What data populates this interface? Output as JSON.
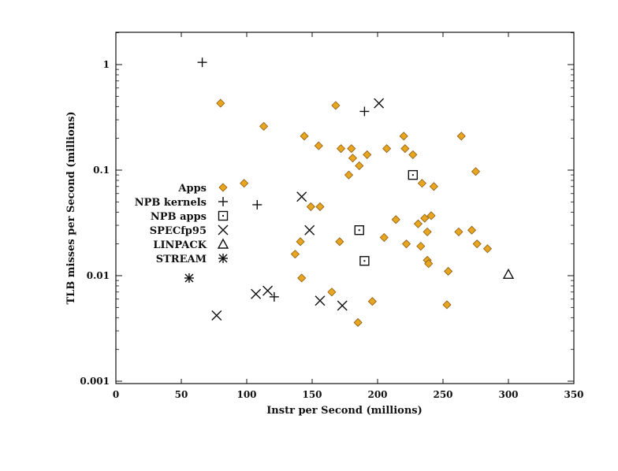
{
  "chart_data": {
    "type": "scatter",
    "title": "",
    "xlabel": "Instr per Second (millions)",
    "ylabel": "TLB misses per Second (millions)",
    "xlim": [
      0,
      350
    ],
    "ylim": [
      0.001,
      2
    ],
    "yscale": "log",
    "grid": false,
    "legend_position": "left",
    "x_ticks": [
      0,
      50,
      100,
      150,
      200,
      250,
      300,
      350
    ],
    "x_tick_labels": [
      "0",
      "50",
      "100",
      "150",
      "200",
      "250",
      "300",
      "350"
    ],
    "y_ticks": [
      0.001,
      0.01,
      0.1,
      1
    ],
    "y_tick_labels": [
      "0.001",
      "0.01",
      "0.1",
      "1"
    ],
    "series": [
      {
        "name": "Apps",
        "marker": "diamond",
        "color": "#e8a520",
        "points": [
          {
            "x": 80,
            "y": 0.43
          },
          {
            "x": 98,
            "y": 0.075
          },
          {
            "x": 113,
            "y": 0.26
          },
          {
            "x": 137,
            "y": 0.016
          },
          {
            "x": 141,
            "y": 0.021
          },
          {
            "x": 144,
            "y": 0.21
          },
          {
            "x": 142,
            "y": 0.0095
          },
          {
            "x": 149,
            "y": 0.045
          },
          {
            "x": 155,
            "y": 0.17
          },
          {
            "x": 156,
            "y": 0.045
          },
          {
            "x": 165,
            "y": 0.007
          },
          {
            "x": 168,
            "y": 0.41
          },
          {
            "x": 171,
            "y": 0.021
          },
          {
            "x": 172,
            "y": 0.16
          },
          {
            "x": 178,
            "y": 0.09
          },
          {
            "x": 180,
            "y": 0.16
          },
          {
            "x": 181,
            "y": 0.13
          },
          {
            "x": 185,
            "y": 0.0036
          },
          {
            "x": 186,
            "y": 0.11
          },
          {
            "x": 192,
            "y": 0.14
          },
          {
            "x": 196,
            "y": 0.0057
          },
          {
            "x": 205,
            "y": 0.023
          },
          {
            "x": 207,
            "y": 0.16
          },
          {
            "x": 214,
            "y": 0.034
          },
          {
            "x": 220,
            "y": 0.21
          },
          {
            "x": 221,
            "y": 0.16
          },
          {
            "x": 222,
            "y": 0.02
          },
          {
            "x": 227,
            "y": 0.14
          },
          {
            "x": 231,
            "y": 0.031
          },
          {
            "x": 233,
            "y": 0.019
          },
          {
            "x": 234,
            "y": 0.075
          },
          {
            "x": 236,
            "y": 0.035
          },
          {
            "x": 238,
            "y": 0.026
          },
          {
            "x": 238,
            "y": 0.014
          },
          {
            "x": 239,
            "y": 0.013
          },
          {
            "x": 241,
            "y": 0.037
          },
          {
            "x": 243,
            "y": 0.07
          },
          {
            "x": 253,
            "y": 0.0053
          },
          {
            "x": 254,
            "y": 0.011
          },
          {
            "x": 262,
            "y": 0.026
          },
          {
            "x": 264,
            "y": 0.21
          },
          {
            "x": 272,
            "y": 0.027
          },
          {
            "x": 275,
            "y": 0.097
          },
          {
            "x": 276,
            "y": 0.02
          },
          {
            "x": 284,
            "y": 0.018
          }
        ]
      },
      {
        "name": "NPB kernels",
        "marker": "plus",
        "color": "#111111",
        "points": [
          {
            "x": 66,
            "y": 1.05
          },
          {
            "x": 108,
            "y": 0.047
          },
          {
            "x": 121,
            "y": 0.0063
          },
          {
            "x": 190,
            "y": 0.36
          }
        ]
      },
      {
        "name": "NPB apps",
        "marker": "square",
        "color": "#111111",
        "points": [
          {
            "x": 186,
            "y": 0.027
          },
          {
            "x": 190,
            "y": 0.0138
          },
          {
            "x": 227,
            "y": 0.09
          }
        ]
      },
      {
        "name": "SPECfp95",
        "marker": "x",
        "color": "#111111",
        "points": [
          {
            "x": 77,
            "y": 0.0042
          },
          {
            "x": 107,
            "y": 0.0067
          },
          {
            "x": 116,
            "y": 0.0072
          },
          {
            "x": 142,
            "y": 0.056
          },
          {
            "x": 148,
            "y": 0.027
          },
          {
            "x": 156,
            "y": 0.0058
          },
          {
            "x": 173,
            "y": 0.0052
          },
          {
            "x": 201,
            "y": 0.43
          }
        ]
      },
      {
        "name": "LINPACK",
        "marker": "triangle",
        "color": "#111111",
        "points": [
          {
            "x": 300,
            "y": 0.0103
          }
        ]
      },
      {
        "name": "STREAM",
        "marker": "asterisk",
        "color": "#111111",
        "points": [
          {
            "x": 56,
            "y": 0.0095
          }
        ]
      }
    ]
  }
}
